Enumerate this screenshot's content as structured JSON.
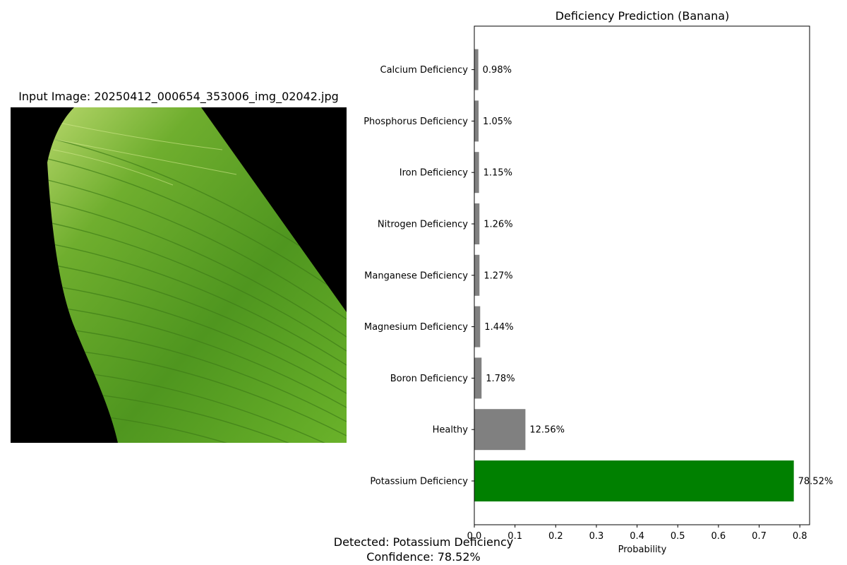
{
  "input_image": {
    "title": "Input Image: 20250412_000654_353006_img_02042.jpg"
  },
  "result": {
    "detected": "Detected: Potassium Deficiency",
    "confidence": "Confidence: 78.52%"
  },
  "colors": {
    "highlight": "#008000",
    "default_bar": "#808080"
  },
  "chart_data": {
    "type": "bar",
    "orientation": "horizontal",
    "title": "Deficiency Prediction (Banana)",
    "xlabel": "Probability",
    "ylabel": "",
    "xlim": [
      0,
      0.824
    ],
    "xticks": [
      "0.0",
      "0.1",
      "0.2",
      "0.3",
      "0.4",
      "0.5",
      "0.6",
      "0.7",
      "0.8"
    ],
    "grid": false,
    "categories": [
      "Potassium Deficiency",
      "Healthy",
      "Boron Deficiency",
      "Magnesium Deficiency",
      "Manganese Deficiency",
      "Nitrogen Deficiency",
      "Iron Deficiency",
      "Phosphorus Deficiency",
      "Calcium Deficiency"
    ],
    "values": [
      0.7852,
      0.1256,
      0.0178,
      0.0144,
      0.0127,
      0.0126,
      0.0115,
      0.0105,
      0.0098
    ],
    "value_labels": [
      "78.52%",
      "12.56%",
      "1.78%",
      "1.44%",
      "1.27%",
      "1.26%",
      "1.15%",
      "1.05%",
      "0.98%"
    ],
    "highlighted_category": "Potassium Deficiency"
  }
}
